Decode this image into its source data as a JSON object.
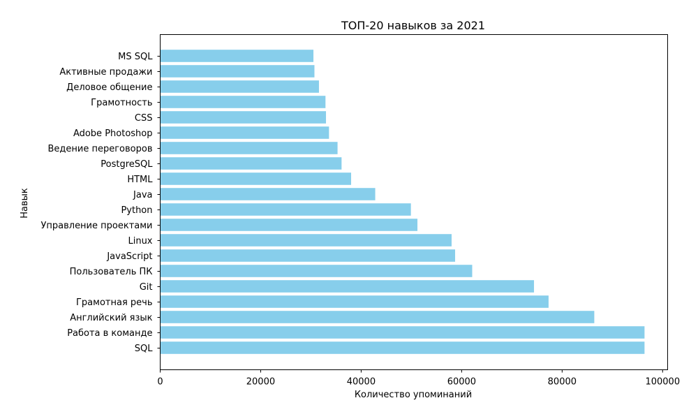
{
  "chart_data": {
    "type": "bar",
    "orientation": "horizontal",
    "title": "ТОП-20 навыков за 2021",
    "xlabel": "Количество упоминаний",
    "ylabel": "Навык",
    "xlim": [
      0,
      101000
    ],
    "xticks": [
      0,
      20000,
      40000,
      60000,
      80000,
      100000
    ],
    "bar_color": "#87ceeb",
    "grid": false,
    "categories": [
      "SQL",
      "Работа в команде",
      "Английский язык",
      "Грамотная речь",
      "Git",
      "Пользователь ПК",
      "JavaScript",
      "Linux",
      "Управление проектами",
      "Python",
      "Java",
      "HTML",
      "PostgreSQL",
      "Ведение переговоров",
      "Adobe Photoshop",
      "CSS",
      "Грамотность",
      "Деловое общение",
      "Активные продажи",
      "MS SQL"
    ],
    "values": [
      96400,
      96400,
      86400,
      77300,
      74400,
      62100,
      58700,
      58000,
      51200,
      49900,
      42800,
      38000,
      36100,
      35300,
      33600,
      33000,
      32900,
      31600,
      30700,
      30500
    ]
  }
}
